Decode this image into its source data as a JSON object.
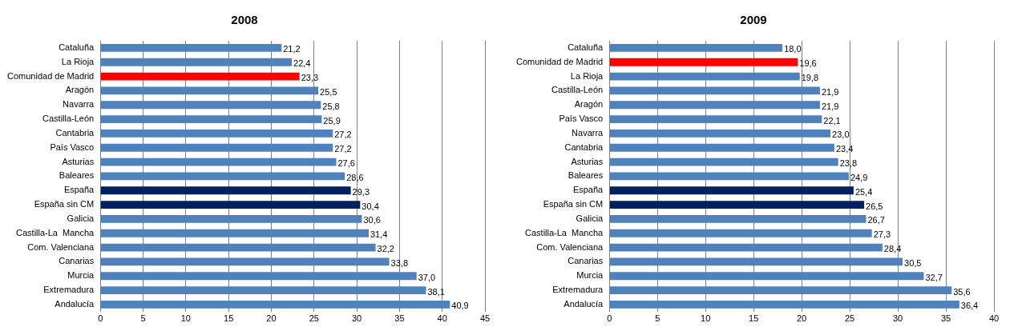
{
  "chart_data": [
    {
      "type": "bar",
      "title": "2008",
      "orientation": "horizontal",
      "categories": [
        "Cataluña",
        "La Rioja",
        "Comunidad de Madrid",
        "Aragón",
        "Navarra",
        "Castilla-León",
        "Cantabria",
        "País Vasco",
        "Asturias",
        "Baleares",
        "España",
        "España sin CM",
        "Galicia",
        "Castilla-La  Mancha",
        "Com. Valenciana",
        "Canarias",
        "Murcia",
        "Extremadura",
        "Andalucía"
      ],
      "values": [
        21.2,
        22.4,
        23.3,
        25.5,
        25.8,
        25.9,
        27.2,
        27.2,
        27.6,
        28.6,
        29.3,
        30.4,
        30.6,
        31.4,
        32.2,
        33.8,
        37.0,
        38.1,
        40.9
      ],
      "value_labels": [
        "21,2",
        "22,4",
        "23,3",
        "25,5",
        "25,8",
        "25,9",
        "27,2",
        "27,2",
        "27,6",
        "28,6",
        "29,3",
        "30,4",
        "30,6",
        "31,4",
        "32,2",
        "33,8",
        "37,0",
        "38,1",
        "40,9"
      ],
      "colors": [
        "#4f81bd",
        "#4f81bd",
        "#ff0000",
        "#4f81bd",
        "#4f81bd",
        "#4f81bd",
        "#4f81bd",
        "#4f81bd",
        "#4f81bd",
        "#4f81bd",
        "#002060",
        "#002060",
        "#4f81bd",
        "#4f81bd",
        "#4f81bd",
        "#4f81bd",
        "#4f81bd",
        "#4f81bd",
        "#4f81bd"
      ],
      "xlim": [
        0,
        45
      ],
      "xticks": [
        0,
        5,
        10,
        15,
        20,
        25,
        30,
        35,
        40,
        45
      ],
      "grid": "x",
      "legend": false
    },
    {
      "type": "bar",
      "title": "2009",
      "orientation": "horizontal",
      "categories": [
        "Cataluña",
        "Comunidad de Madrid",
        "La Rioja",
        "Castilla-León",
        "Aragón",
        "País Vasco",
        "Navarra",
        "Cantabria",
        "Asturias",
        "Baleares",
        "España",
        "España sin CM",
        "Galicia",
        "Castilla-La  Mancha",
        "Com. Valenciana",
        "Canarias",
        "Murcia",
        "Extremadura",
        "Andalucía"
      ],
      "values": [
        18.0,
        19.6,
        19.8,
        21.9,
        21.9,
        22.1,
        23.0,
        23.4,
        23.8,
        24.9,
        25.4,
        26.5,
        26.7,
        27.3,
        28.4,
        30.5,
        32.7,
        35.6,
        36.4
      ],
      "value_labels": [
        "18,0",
        "19,6",
        "19,8",
        "21,9",
        "21,9",
        "22,1",
        "23,0",
        "23,4",
        "23,8",
        "24,9",
        "25,4",
        "26,5",
        "26,7",
        "27,3",
        "28,4",
        "30,5",
        "32,7",
        "35,6",
        "36,4"
      ],
      "colors": [
        "#4f81bd",
        "#ff0000",
        "#4f81bd",
        "#4f81bd",
        "#4f81bd",
        "#4f81bd",
        "#4f81bd",
        "#4f81bd",
        "#4f81bd",
        "#4f81bd",
        "#002060",
        "#002060",
        "#4f81bd",
        "#4f81bd",
        "#4f81bd",
        "#4f81bd",
        "#4f81bd",
        "#4f81bd",
        "#4f81bd"
      ],
      "xlim": [
        0,
        40
      ],
      "xticks": [
        0,
        5,
        10,
        15,
        20,
        25,
        30,
        35,
        40
      ],
      "grid": "x",
      "legend": false
    }
  ]
}
